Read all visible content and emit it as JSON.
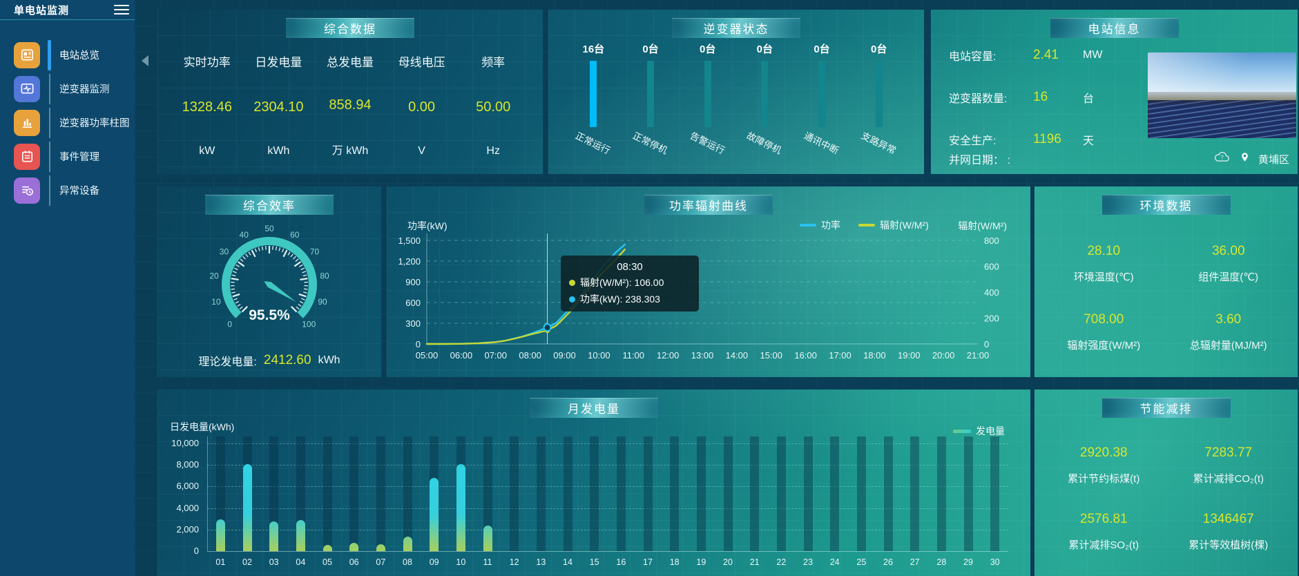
{
  "app": {
    "title": "单电站监测"
  },
  "sidebar": {
    "items": [
      {
        "label": "电站总览",
        "icon": "station-overview-icon",
        "color": "#e7a23c",
        "active": true
      },
      {
        "label": "逆变器监测",
        "icon": "inverter-monitor-icon",
        "color": "#5376d9",
        "active": false
      },
      {
        "label": "逆变器功率柱图",
        "icon": "inverter-power-bars-icon",
        "color": "#e7a23c",
        "active": false
      },
      {
        "label": "事件管理",
        "icon": "event-management-icon",
        "color": "#e65551",
        "active": false
      },
      {
        "label": "异常设备",
        "icon": "abnormal-device-icon",
        "color": "#9a6fd8",
        "active": false
      }
    ]
  },
  "summary": {
    "title": "综合数据",
    "metrics": [
      {
        "label": "实时功率",
        "value": "1328.46",
        "unit": "kW"
      },
      {
        "label": "日发电量",
        "value": "2304.10",
        "unit": "kWh"
      },
      {
        "label": "总发电量",
        "value": "858.94",
        "unit": "万 kWh"
      },
      {
        "label": "母线电压",
        "value": "0.00",
        "unit": "V"
      },
      {
        "label": "频率",
        "value": "50.00",
        "unit": "Hz"
      }
    ]
  },
  "inverter_status": {
    "title": "逆变器状态",
    "unit_suffix": "台",
    "items": [
      {
        "label": "正常运行",
        "count": 16,
        "highlight": true
      },
      {
        "label": "正常停机",
        "count": 0,
        "highlight": false
      },
      {
        "label": "告警运行",
        "count": 0,
        "highlight": false
      },
      {
        "label": "故障停机",
        "count": 0,
        "highlight": false
      },
      {
        "label": "通讯中断",
        "count": 0,
        "highlight": false
      },
      {
        "label": "支路异常",
        "count": 0,
        "highlight": false
      }
    ]
  },
  "station_info": {
    "title": "电站信息",
    "rows": [
      {
        "label": "电站容量:",
        "value": "2.41",
        "unit": "MW"
      },
      {
        "label": "逆变器数量:",
        "value": "16",
        "unit": "台"
      },
      {
        "label": "安全生产:",
        "value": "1196",
        "unit": "天"
      }
    ],
    "grid_date_label": "并网日期： :",
    "district": "黄埔区"
  },
  "efficiency": {
    "title": "综合效率",
    "gauge": {
      "value": 95.5,
      "display": "95.5%",
      "min": 0,
      "max": 100,
      "tick_step": 10
    },
    "theoretical_label": "理论发电量:",
    "theoretical_value": "2412.60",
    "theoretical_unit": "kWh"
  },
  "environment": {
    "title": "环境数据",
    "metrics": [
      {
        "value": "28.10",
        "label": "环境温度(℃)"
      },
      {
        "value": "36.00",
        "label": "组件温度(℃)"
      },
      {
        "value": "708.00",
        "label": "辐射强度(W/M²)"
      },
      {
        "value": "3.60",
        "label": "总辐射量(MJ/M²)"
      }
    ]
  },
  "saving": {
    "title": "节能减排",
    "metrics": [
      {
        "value": "2920.38",
        "label": "累计节约标煤(t)"
      },
      {
        "value": "7283.77",
        "label": "累计减排CO₂(t)"
      },
      {
        "value": "2576.81",
        "label": "累计减排SO₂(t)"
      },
      {
        "value": "1346467",
        "label": "累计等效植树(棵)"
      }
    ]
  },
  "chart_data": [
    {
      "id": "power_radiation",
      "type": "line",
      "title": "功率辐射曲线",
      "ylabel_left": "功率(kW)",
      "ylabel_right": "辐射(W/M²)",
      "ylim_left": [
        0,
        1500
      ],
      "yticks_left": [
        0,
        300,
        600,
        900,
        1200,
        1500
      ],
      "ylim_right": [
        0,
        800
      ],
      "yticks_right": [
        0,
        200,
        400,
        600,
        800
      ],
      "x_range_hours": [
        5,
        21
      ],
      "x_ticks": [
        "05:00",
        "06:00",
        "07:00",
        "08:00",
        "09:00",
        "10:00",
        "11:00",
        "12:00",
        "13:00",
        "14:00",
        "15:00",
        "16:00",
        "17:00",
        "18:00",
        "19:00",
        "20:00",
        "21:00"
      ],
      "grid": true,
      "legend_position": "top-right",
      "series": [
        {
          "name": "功率",
          "axis": "left",
          "color": "#29c3f0",
          "x": [
            5,
            5.5,
            6,
            6.5,
            7,
            7.25,
            7.5,
            7.75,
            8,
            8.25,
            8.5,
            8.75,
            9,
            9.25,
            9.5,
            9.75,
            10,
            10.25,
            10.5,
            10.75
          ],
          "values": [
            0,
            0,
            3,
            10,
            28,
            45,
            75,
            105,
            145,
            190,
            238.3,
            300,
            430,
            560,
            720,
            880,
            1050,
            1200,
            1330,
            1440
          ]
        },
        {
          "name": "辐射(W/M²)",
          "axis": "right",
          "color": "#c6d832",
          "x": [
            5,
            5.5,
            6,
            6.5,
            7,
            7.25,
            7.5,
            7.75,
            8,
            8.25,
            8.5,
            8.75,
            9,
            9.25,
            9.5,
            9.75,
            10,
            10.25,
            10.5,
            10.75
          ],
          "values": [
            0,
            0,
            1,
            5,
            14,
            24,
            38,
            54,
            72,
            88,
            106,
            140,
            205,
            275,
            360,
            440,
            520,
            590,
            655,
            730
          ]
        }
      ],
      "tooltip": {
        "time": "08:30",
        "x_hour": 8.5,
        "lines": [
          {
            "color": "#c6d832",
            "text": "辐射(W/M²): 106.00"
          },
          {
            "color": "#29c3f0",
            "text": "功率(kW): 238.303"
          }
        ]
      }
    },
    {
      "id": "monthly_generation",
      "type": "bar",
      "title": "月发电量",
      "ylabel": "日发电量(kWh)",
      "legend": "发电量",
      "ylim": [
        0,
        10000
      ],
      "yticks": [
        0,
        2000,
        4000,
        6000,
        8000,
        10000
      ],
      "grid": true,
      "categories": [
        "01",
        "02",
        "03",
        "04",
        "05",
        "06",
        "07",
        "08",
        "09",
        "10",
        "11",
        "12",
        "13",
        "14",
        "15",
        "16",
        "17",
        "18",
        "19",
        "20",
        "21",
        "22",
        "23",
        "24",
        "25",
        "26",
        "27",
        "28",
        "29",
        "30"
      ],
      "values": [
        2950,
        8050,
        2750,
        2900,
        550,
        800,
        650,
        1350,
        6800,
        8100,
        2400,
        0,
        0,
        0,
        0,
        0,
        0,
        0,
        0,
        0,
        0,
        0,
        0,
        0,
        0,
        0,
        0,
        0,
        0,
        0
      ]
    }
  ],
  "colors": {
    "value_yellow": "#d8e62c",
    "power_line": "#29c3f0",
    "radiation_line": "#c6d832",
    "inverter_bar_highlight": "#00bdf8",
    "inverter_bar_normal": "#13858c",
    "gauge": "#3fc8c2",
    "bar_gradient_top": "#2fd3e4",
    "bar_gradient_bottom": "#a8cf5c",
    "active_menu_indicator": "#2f9ff0"
  }
}
